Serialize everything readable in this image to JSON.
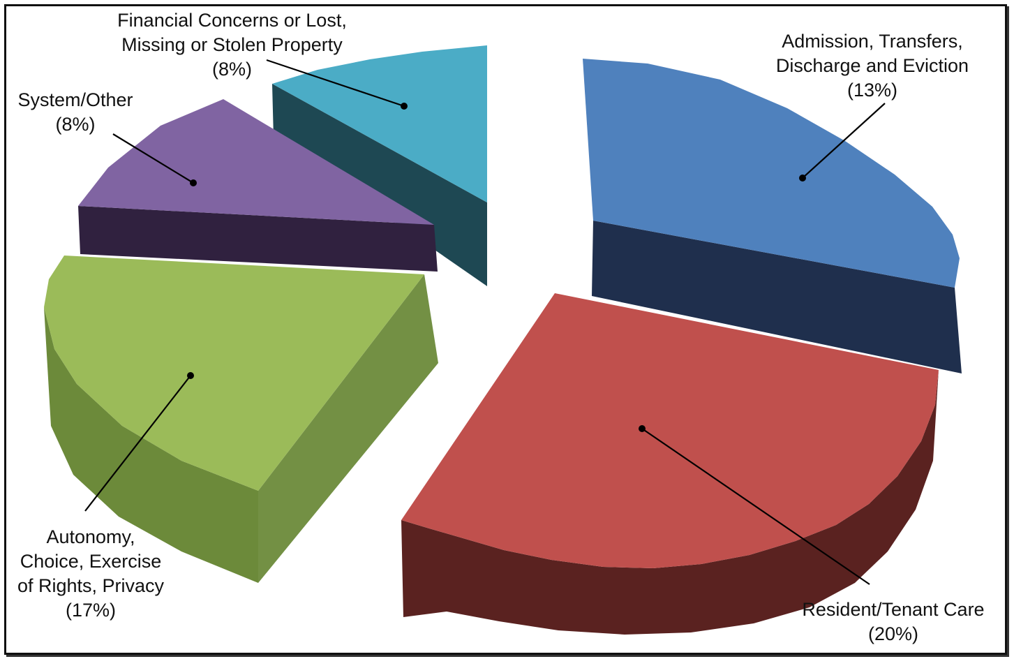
{
  "chart_data": {
    "type": "pie",
    "three_d": true,
    "exploded": true,
    "legend": "none",
    "slices": [
      {
        "lines": [
          "Admission, Transfers,",
          "Discharge and Eviction"
        ],
        "pct": "(13%)",
        "value": 13,
        "color": "#4F81BD",
        "side_color": "#1F2F4D"
      },
      {
        "lines": [
          "Resident/Tenant Care"
        ],
        "pct": "(20%)",
        "value": 20,
        "color": "#C0504D",
        "side_color": "#5A2220"
      },
      {
        "lines": [
          "Autonomy,",
          "Choice, Exercise",
          "of Rights, Privacy"
        ],
        "pct": "(17%)",
        "value": 17,
        "color": "#9BBB59",
        "side_color": "#6C8A3A"
      },
      {
        "lines": [
          "System/Other"
        ],
        "pct": "(8%)",
        "value": 8,
        "color": "#8064A2",
        "side_color": "#30213F"
      },
      {
        "lines": [
          "Financial Concerns or Lost,",
          "Missing or Stolen Property"
        ],
        "pct": "(8%)",
        "value": 8,
        "color": "#4BACC6",
        "side_color": "#1E4853"
      }
    ]
  }
}
